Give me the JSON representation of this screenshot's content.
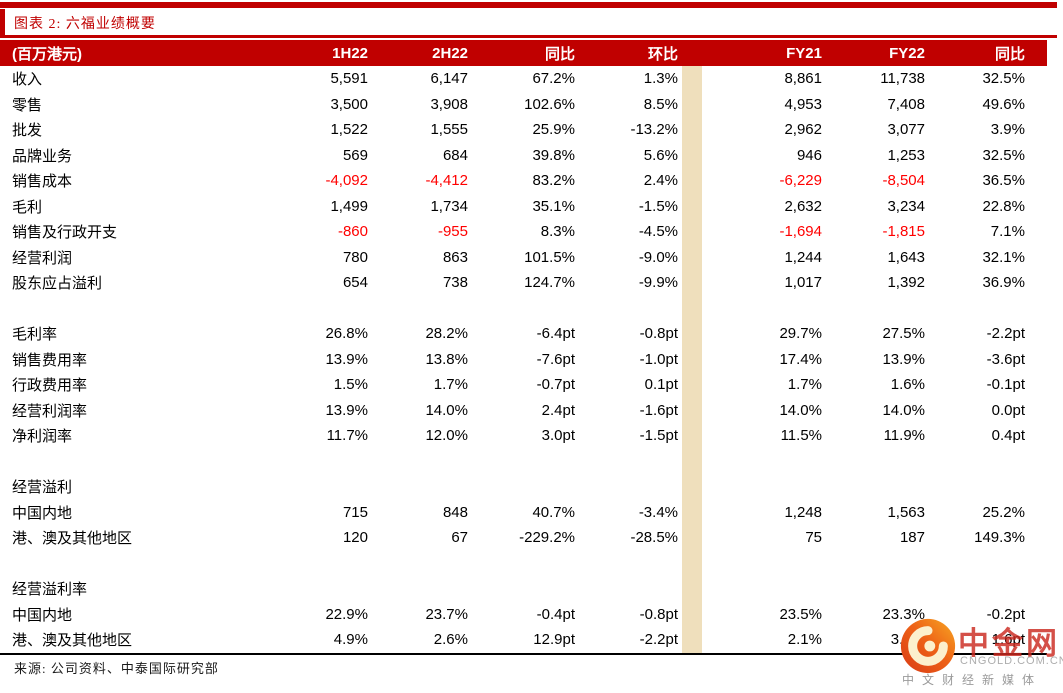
{
  "page": {
    "title": "图表 2: 六福业绩概要",
    "source": "来源: 公司资料、中泰国际研究部"
  },
  "table": {
    "unit_label": "(百万港元)",
    "columns": [
      "1H22",
      "2H22",
      "同比",
      "环比",
      "FY21",
      "FY22",
      "同比"
    ],
    "rows": [
      {
        "label": "收入",
        "cells": [
          "5,591",
          "6,147",
          "67.2%",
          "1.3%",
          "8,861",
          "11,738",
          "32.5%"
        ]
      },
      {
        "label": "零售",
        "cells": [
          "3,500",
          "3,908",
          "102.6%",
          "8.5%",
          "4,953",
          "7,408",
          "49.6%"
        ]
      },
      {
        "label": "批发",
        "cells": [
          "1,522",
          "1,555",
          "25.9%",
          "-13.2%",
          "2,962",
          "3,077",
          "3.9%"
        ]
      },
      {
        "label": "品牌业务",
        "cells": [
          "569",
          "684",
          "39.8%",
          "5.6%",
          "946",
          "1,253",
          "32.5%"
        ]
      },
      {
        "label": "销售成本",
        "cells": [
          "-4,092",
          "-4,412",
          "83.2%",
          "2.4%",
          "-6,229",
          "-8,504",
          "36.5%"
        ],
        "red": [
          0,
          1,
          4,
          5
        ]
      },
      {
        "label": "毛利",
        "cells": [
          "1,499",
          "1,734",
          "35.1%",
          "-1.5%",
          "2,632",
          "3,234",
          "22.8%"
        ]
      },
      {
        "label": "销售及行政开支",
        "cells": [
          "-860",
          "-955",
          "8.3%",
          "-4.5%",
          "-1,694",
          "-1,815",
          "7.1%"
        ],
        "red": [
          0,
          1,
          4,
          5
        ]
      },
      {
        "label": "经营利润",
        "cells": [
          "780",
          "863",
          "101.5%",
          "-9.0%",
          "1,244",
          "1,643",
          "32.1%"
        ]
      },
      {
        "label": "股东应占溢利",
        "cells": [
          "654",
          "738",
          "124.7%",
          "-9.9%",
          "1,017",
          "1,392",
          "36.9%"
        ]
      },
      {
        "type": "blank"
      },
      {
        "label": "毛利率",
        "cells": [
          "26.8%",
          "28.2%",
          "-6.4pt",
          "-0.8pt",
          "29.7%",
          "27.5%",
          "-2.2pt"
        ]
      },
      {
        "label": "销售费用率",
        "cells": [
          "13.9%",
          "13.8%",
          "-7.6pt",
          "-1.0pt",
          "17.4%",
          "13.9%",
          "-3.6pt"
        ]
      },
      {
        "label": "行政费用率",
        "cells": [
          "1.5%",
          "1.7%",
          "-0.7pt",
          "0.1pt",
          "1.7%",
          "1.6%",
          "-0.1pt"
        ]
      },
      {
        "label": "经营利润率",
        "cells": [
          "13.9%",
          "14.0%",
          "2.4pt",
          "-1.6pt",
          "14.0%",
          "14.0%",
          "0.0pt"
        ]
      },
      {
        "label": "净利润率",
        "cells": [
          "11.7%",
          "12.0%",
          "3.0pt",
          "-1.5pt",
          "11.5%",
          "11.9%",
          "0.4pt"
        ]
      },
      {
        "type": "blank"
      },
      {
        "type": "section",
        "label": "经营溢利"
      },
      {
        "label": "中国内地",
        "cells": [
          "715",
          "848",
          "40.7%",
          "-3.4%",
          "1,248",
          "1,563",
          "25.2%"
        ]
      },
      {
        "label": "港、澳及其他地区",
        "cells": [
          "120",
          "67",
          "-229.2%",
          "-28.5%",
          "75",
          "187",
          "149.3%"
        ]
      },
      {
        "type": "blank"
      },
      {
        "type": "section",
        "label": "经营溢利率"
      },
      {
        "label": "中国内地",
        "cells": [
          "22.9%",
          "23.7%",
          "-0.4pt",
          "-0.8pt",
          "23.5%",
          "23.3%",
          "-0.2pt"
        ]
      },
      {
        "label": "港、澳及其他地区",
        "cells": [
          "4.9%",
          "2.6%",
          "12.9pt",
          "-2.2pt",
          "2.1%",
          "3.7%",
          "1.6pt"
        ]
      }
    ]
  },
  "watermark": {
    "brand": "中金网",
    "domain": "CNGOLD.COM.CN",
    "tagline": "中文财经新媒体"
  },
  "colors": {
    "accent_red": "#C00000",
    "negative_red": "#FF0000",
    "stripe_beige": "#EFDFBC",
    "logo_orange_top": "#F7A823",
    "logo_orange_mid": "#EE6317",
    "logo_orange_deep": "#D93A15",
    "logo_swirl": "#FCF0CD",
    "brand_red": "#CB2A20"
  }
}
